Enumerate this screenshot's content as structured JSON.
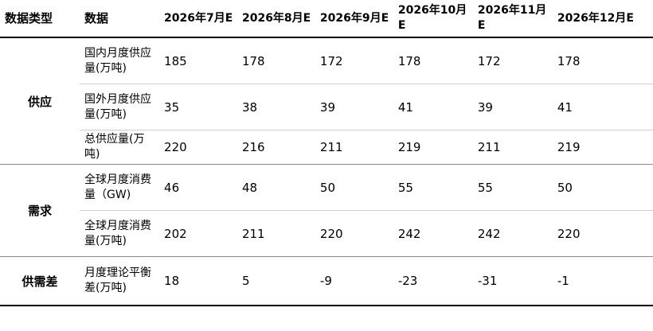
{
  "table": {
    "headers": [
      "数据类型",
      "数据",
      "2026年7月E",
      "2026年8月E",
      "2026年9月E",
      "2026年10月E",
      "2026年11月E",
      "2026年12月E"
    ],
    "groups": [
      {
        "label": "供应",
        "rows": [
          {
            "metric": "国内月度供应量(万吨)",
            "values": [
              "185",
              "178",
              "172",
              "178",
              "172",
              "178"
            ]
          },
          {
            "metric": "国外月度供应量(万吨)",
            "values": [
              "35",
              "38",
              "39",
              "41",
              "39",
              "41"
            ]
          },
          {
            "metric": "总供应量(万吨)",
            "values": [
              "220",
              "216",
              "211",
              "219",
              "211",
              "219"
            ]
          }
        ]
      },
      {
        "label": "需求",
        "rows": [
          {
            "metric": "全球月度消费量（GW)",
            "values": [
              "46",
              "48",
              "50",
              "55",
              "55",
              "50"
            ]
          },
          {
            "metric": "全球月度消费量(万吨)",
            "values": [
              "202",
              "211",
              "220",
              "242",
              "242",
              "220"
            ]
          }
        ]
      },
      {
        "label": "供需差",
        "rows": [
          {
            "metric": "月度理论平衡差(万吨)",
            "values": [
              "18",
              "5",
              "-9",
              "-23",
              "-31",
              "-1"
            ]
          }
        ]
      }
    ]
  }
}
